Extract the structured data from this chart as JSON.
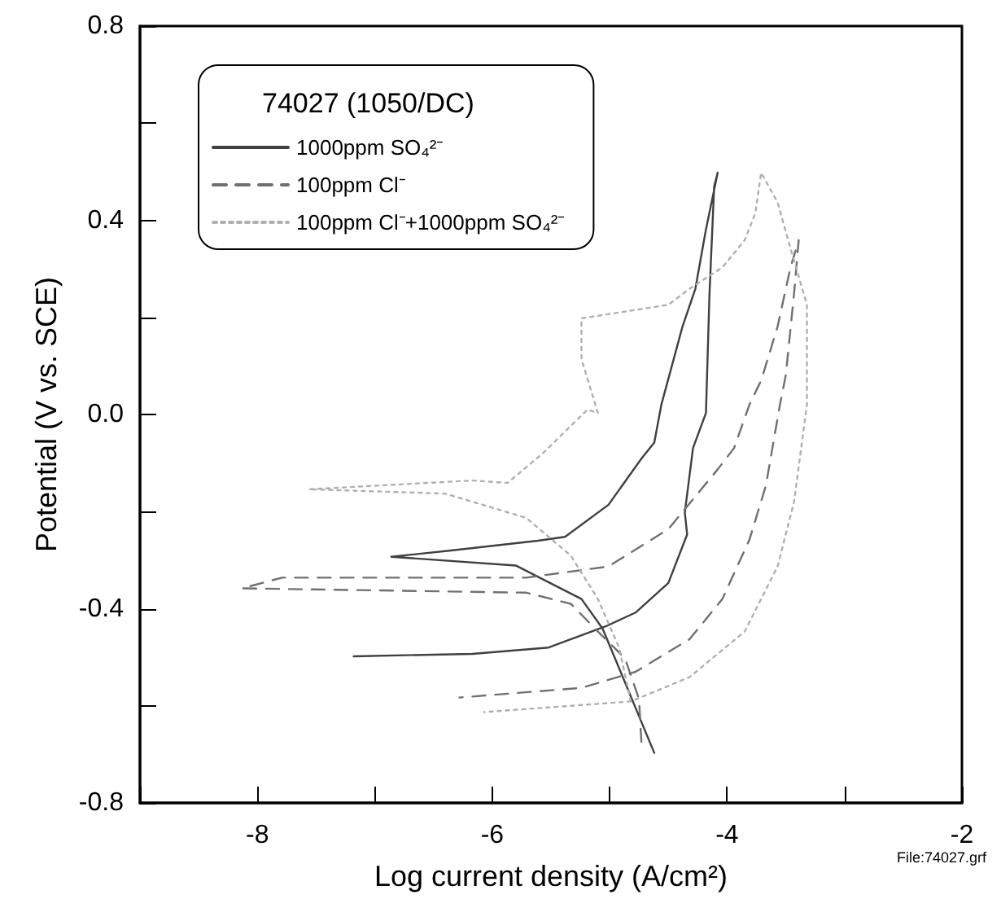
{
  "chart_data": {
    "type": "line",
    "legend_title": "74027 (1050/DC)",
    "xlabel": "Log current density (A/cm²)",
    "ylabel": "Potential (V vs. SCE)",
    "annotations": [
      "File:74027.grf"
    ],
    "xlim": [
      -9,
      -2
    ],
    "ylim": [
      -0.8,
      0.8
    ],
    "xticks": [
      {
        "value": -9,
        "label": null
      },
      -8,
      {
        "value": -7,
        "label": null
      },
      -6,
      {
        "value": -5,
        "label": null
      },
      -4,
      {
        "value": -3,
        "label": null
      },
      -2
    ],
    "yticks": [
      -0.8,
      {
        "value": -0.6,
        "label": null
      },
      -0.4,
      {
        "value": -0.2,
        "label": null
      },
      {
        "value": 0,
        "label": "0.0"
      },
      {
        "value": 0.2,
        "label": null
      },
      0.4,
      {
        "value": 0.6,
        "label": null
      },
      0.8
    ],
    "grid": false,
    "legend": "top left",
    "marker": "none",
    "series": [
      {
        "name": "1000ppm SO₄²⁻",
        "color": "#404040",
        "line_style": "solid",
        "x": [
          -7.18,
          -6.17,
          -5.52,
          -5.03,
          -4.78,
          -4.5,
          -4.34,
          -4.36,
          -4.29,
          -4.18,
          -4.15,
          -4.11,
          -4.08,
          -4.18,
          -4.27,
          -4.38,
          -4.56,
          -4.62,
          -4.73,
          -5.01,
          -5.38,
          -5.61,
          -6.35,
          -6.86,
          -5.8,
          -5.24,
          -5.06,
          -4.62
        ],
        "values": [
          -0.498,
          -0.493,
          -0.48,
          -0.436,
          -0.408,
          -0.347,
          -0.247,
          -0.202,
          -0.069,
          0.003,
          0.248,
          0.47,
          0.498,
          0.381,
          0.259,
          0.181,
          0.02,
          -0.058,
          -0.091,
          -0.186,
          -0.252,
          -0.26,
          -0.28,
          -0.293,
          -0.311,
          -0.38,
          -0.441,
          -0.697
        ]
      },
      {
        "name": "100ppm Cl⁻",
        "color": "#707070",
        "line_style": "dashed",
        "x": [
          -4.73,
          -4.75,
          -4.87,
          -5.1,
          -5.33,
          -5.71,
          -8.13,
          -7.79,
          -5.71,
          -5.01,
          -4.5,
          -4.08,
          -3.94,
          -3.81,
          -3.71,
          -3.57,
          -3.46,
          -3.39,
          -3.43,
          -3.5,
          -3.55,
          -3.67,
          -3.81,
          -4.04,
          -4.32,
          -4.78,
          -5.24,
          -6.28
        ],
        "values": [
          -0.674,
          -0.586,
          -0.502,
          -0.447,
          -0.39,
          -0.367,
          -0.358,
          -0.336,
          -0.336,
          -0.313,
          -0.236,
          -0.113,
          -0.069,
          0.02,
          0.07,
          0.181,
          0.303,
          0.359,
          0.248,
          0.081,
          0.02,
          -0.147,
          -0.258,
          -0.38,
          -0.463,
          -0.53,
          -0.563,
          -0.583
        ]
      },
      {
        "name": "100ppm Cl⁻+1000ppm SO₄²⁻",
        "color": "#b0b0b0",
        "line_style": "dotted",
        "x": [
          -4.82,
          -4.92,
          -5.1,
          -5.33,
          -5.71,
          -6.4,
          -7.56,
          -6.17,
          -5.87,
          -5.57,
          -5.19,
          -5.1,
          -5.24,
          -5.24,
          -4.5,
          -4.32,
          -4.04,
          -3.85,
          -3.76,
          -3.71,
          -3.57,
          -3.48,
          -3.32,
          -3.32,
          -3.43,
          -3.57,
          -3.85,
          -4.32,
          -4.82,
          -6.07
        ],
        "values": [
          -0.591,
          -0.48,
          -0.38,
          -0.291,
          -0.213,
          -0.163,
          -0.154,
          -0.136,
          -0.141,
          -0.08,
          0.01,
          0.003,
          0.114,
          0.198,
          0.226,
          0.259,
          0.303,
          0.359,
          0.414,
          0.498,
          0.437,
          0.359,
          0.226,
          0.02,
          -0.18,
          -0.313,
          -0.447,
          -0.541,
          -0.591,
          -0.613
        ]
      }
    ]
  }
}
